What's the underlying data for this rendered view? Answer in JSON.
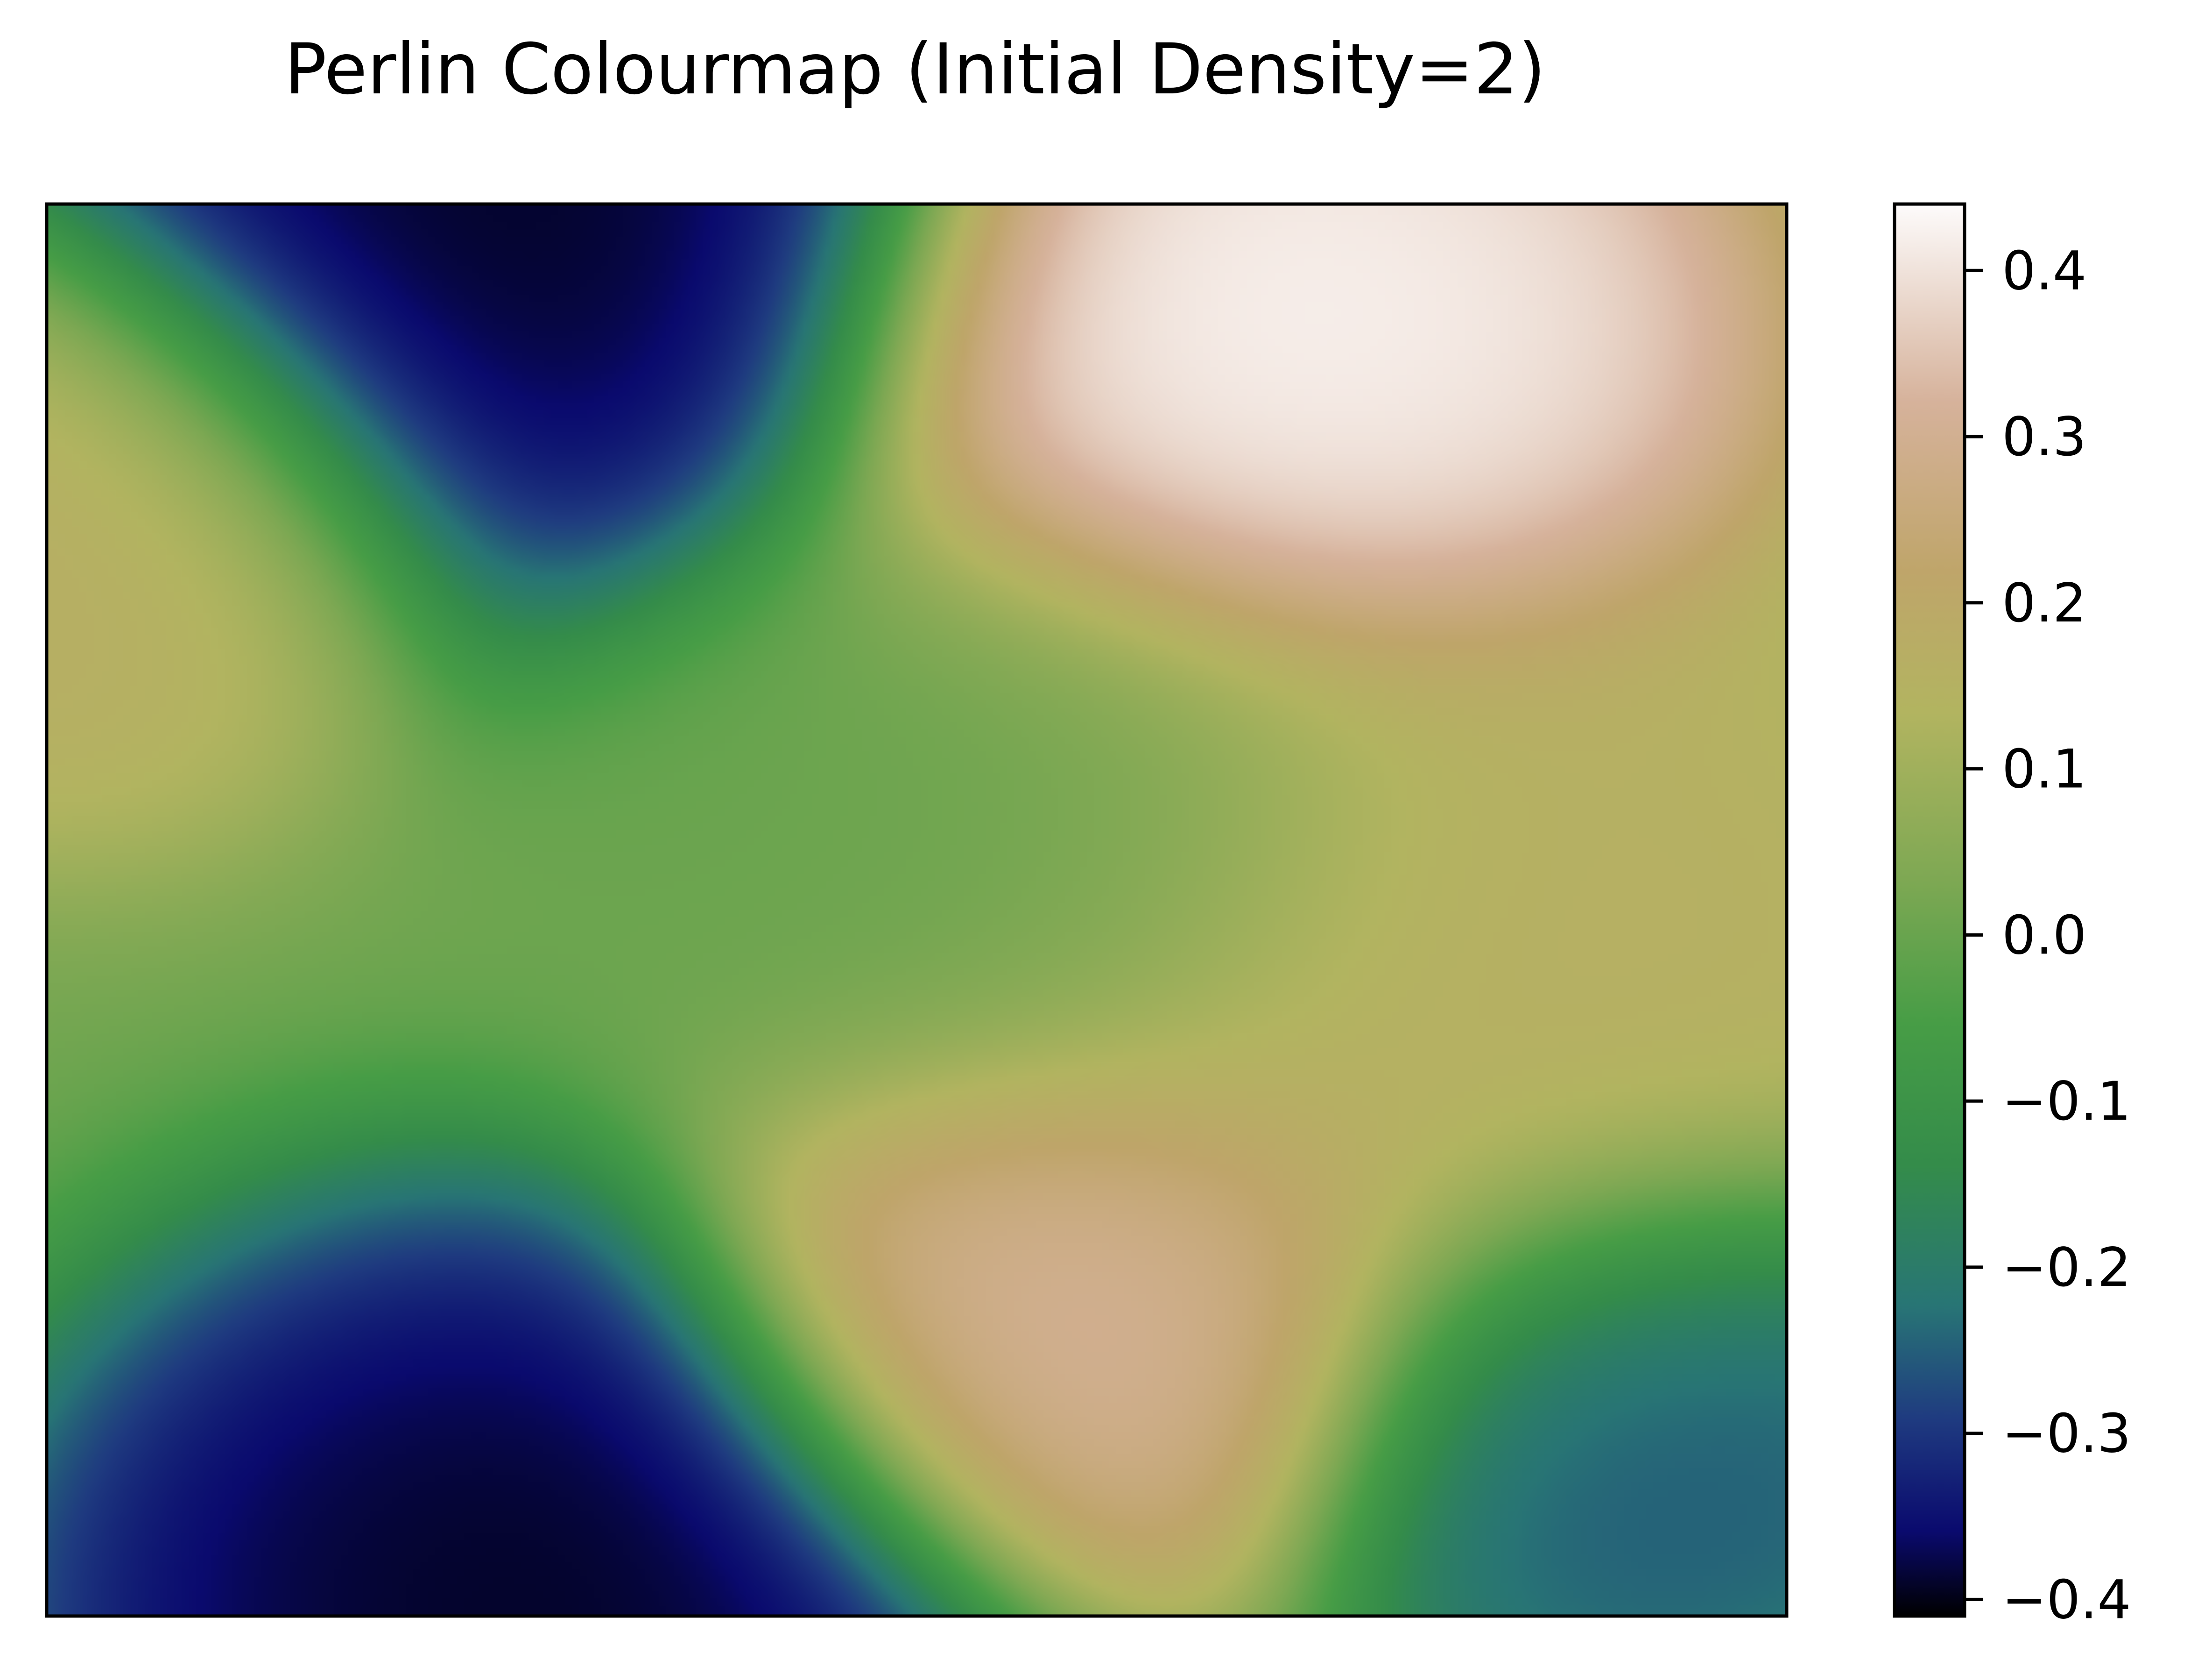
{
  "chart_data": {
    "type": "heatmap",
    "title": "Perlin Colourmap (Initial Density=2)",
    "xlabel": "",
    "ylabel": "",
    "colormap": "gist_earth",
    "colormap_stops": [
      {
        "v": 0.0,
        "color": "#000000"
      },
      {
        "v": 0.06,
        "color": "#0a0a6e"
      },
      {
        "v": 0.14,
        "color": "#1f3b80"
      },
      {
        "v": 0.22,
        "color": "#287575"
      },
      {
        "v": 0.32,
        "color": "#348c4a"
      },
      {
        "v": 0.42,
        "color": "#479d46"
      },
      {
        "v": 0.52,
        "color": "#7da853"
      },
      {
        "v": 0.64,
        "color": "#b2b460"
      },
      {
        "v": 0.74,
        "color": "#bfa56a"
      },
      {
        "v": 0.86,
        "color": "#d6b29b"
      },
      {
        "v": 1.0,
        "color": "#fdfbfb"
      }
    ],
    "value_range": [
      -0.41,
      0.44
    ],
    "x_range": [
      0,
      1
    ],
    "y_range": [
      0,
      1
    ],
    "grid": false,
    "field_features": [
      {
        "x": 0.71,
        "y": 0.9,
        "value": 0.44,
        "spread": 0.12
      },
      {
        "x": 0.6,
        "y": 0.22,
        "value": 0.33,
        "spread": 0.1
      },
      {
        "x": 0.27,
        "y": 0.0,
        "value": -0.41,
        "spread": 0.13
      },
      {
        "x": 0.26,
        "y": 1.0,
        "value": -0.41,
        "spread": 0.13
      },
      {
        "x": 0.92,
        "y": 0.13,
        "value": -0.27,
        "spread": 0.1
      },
      {
        "x": 0.0,
        "y": 0.78,
        "value": 0.18,
        "spread": 0.1
      },
      {
        "x": 0.82,
        "y": 0.45,
        "value": 0.17,
        "spread": 0.14
      },
      {
        "x": 0.56,
        "y": 0.55,
        "value": 0.0,
        "spread": 0.12
      }
    ],
    "colorbar": {
      "ticks": [
        0.4,
        0.3,
        0.2,
        0.1,
        0.0,
        -0.1,
        -0.2,
        -0.3,
        -0.4
      ],
      "tick_labels": [
        "0.4",
        "0.3",
        "0.2",
        "0.1",
        "0.0",
        "−0.1",
        "−0.2",
        "−0.3",
        "−0.4"
      ]
    }
  }
}
